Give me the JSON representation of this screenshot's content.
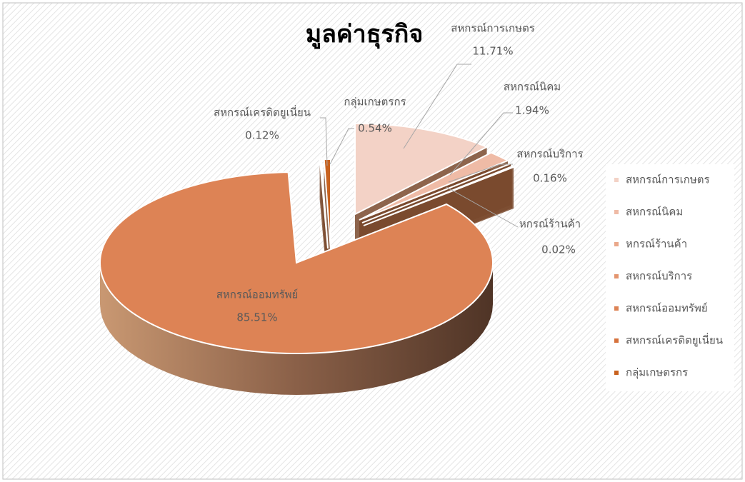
{
  "chart_data": {
    "type": "pie",
    "title": "มูลค่าธุรกิจ",
    "categories": [
      "สหกรณ์การเกษตร",
      "สหกรณ์นิคม",
      "หกรณ์ร้านค้า",
      "สหกรณ์บริการ",
      "สหกรณ์ออมทรัพย์",
      "สหกรณ์เครดิตยูเนี่ยน",
      "กลุ่มเกษตรกร"
    ],
    "values": [
      11.71,
      1.94,
      0.02,
      0.16,
      85.51,
      0.12,
      0.54
    ],
    "value_labels": [
      "11.71%",
      "1.94%",
      "0.02%",
      "0.16%",
      "85.51%",
      "0.12%",
      "0.54%"
    ],
    "colors": [
      "#f3d2c6",
      "#efbba6",
      "#eaa88a",
      "#e4956f",
      "#dd8355",
      "#d6723c",
      "#c8621f"
    ],
    "legend": "right"
  }
}
